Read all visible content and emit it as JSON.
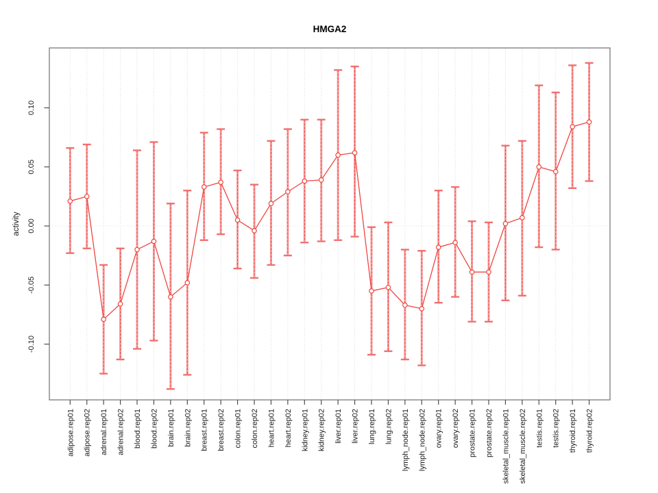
{
  "chart_data": {
    "type": "line",
    "title": "HMGA2",
    "xlabel": "",
    "ylabel": "activity",
    "legend_position": "none",
    "grid": "vertical dotted gridline at every category; dotted horizontal line at y=0",
    "ylim": [
      -0.147,
      0.151
    ],
    "yticks": [
      -0.1,
      -0.05,
      0.0,
      0.05,
      0.1
    ],
    "categories": [
      "adipose.rep01",
      "adipose.rep02",
      "adrenal.rep01",
      "adrenal.rep02",
      "blood.rep01",
      "blood.rep02",
      "brain.rep01",
      "brain.rep02",
      "breast.rep01",
      "breast.rep02",
      "colon.rep01",
      "colon.rep02",
      "heart.rep01",
      "heart.rep02",
      "kidney.rep01",
      "kidney.rep02",
      "liver.rep01",
      "liver.rep02",
      "lung.rep01",
      "lung.rep02",
      "lymph_node.rep01",
      "lymph_node.rep02",
      "ovary.rep01",
      "ovary.rep02",
      "prostate.rep01",
      "prostate.rep02",
      "skeletal_muscle.rep01",
      "skeletal_muscle.rep02",
      "testis.rep01",
      "testis.rep02",
      "thyroid.rep01",
      "thyroid.rep02"
    ],
    "series": [
      {
        "name": "activity",
        "marker": "open-circle",
        "values": [
          0.021,
          0.025,
          -0.079,
          -0.066,
          -0.02,
          -0.013,
          -0.06,
          -0.048,
          0.033,
          0.037,
          0.005,
          -0.004,
          0.019,
          0.029,
          0.038,
          0.039,
          0.06,
          0.062,
          -0.055,
          -0.052,
          -0.067,
          -0.07,
          -0.018,
          -0.014,
          -0.039,
          -0.039,
          0.002,
          0.007,
          0.05,
          0.046,
          0.084,
          0.088
        ],
        "err_low": [
          -0.023,
          -0.019,
          -0.125,
          -0.113,
          -0.104,
          -0.097,
          -0.138,
          -0.126,
          -0.012,
          -0.007,
          -0.036,
          -0.044,
          -0.033,
          -0.025,
          -0.014,
          -0.013,
          -0.012,
          -0.009,
          -0.109,
          -0.106,
          -0.113,
          -0.118,
          -0.065,
          -0.06,
          -0.081,
          -0.081,
          -0.063,
          -0.059,
          -0.018,
          -0.02,
          0.032,
          0.038
        ],
        "err_high": [
          0.066,
          0.069,
          -0.033,
          -0.019,
          0.064,
          0.071,
          0.019,
          0.03,
          0.079,
          0.082,
          0.047,
          0.035,
          0.072,
          0.082,
          0.09,
          0.09,
          0.132,
          0.135,
          -0.001,
          0.003,
          -0.02,
          -0.021,
          0.03,
          0.033,
          0.004,
          0.003,
          0.068,
          0.072,
          0.119,
          0.113,
          0.136,
          0.138
        ]
      }
    ],
    "colors": {
      "line": "#ee453f",
      "marker_stroke": "#ee453f",
      "marker_fill": "#ffffff",
      "error_bar_solid": "#f79b9b",
      "error_bar_dashed": "#e84a45",
      "error_cap": "#f07070",
      "gridline": "#d6d6d6",
      "zero_line": "#dcdcdc",
      "box": "#7a7a7a",
      "tick": "#4d4d4d"
    }
  }
}
